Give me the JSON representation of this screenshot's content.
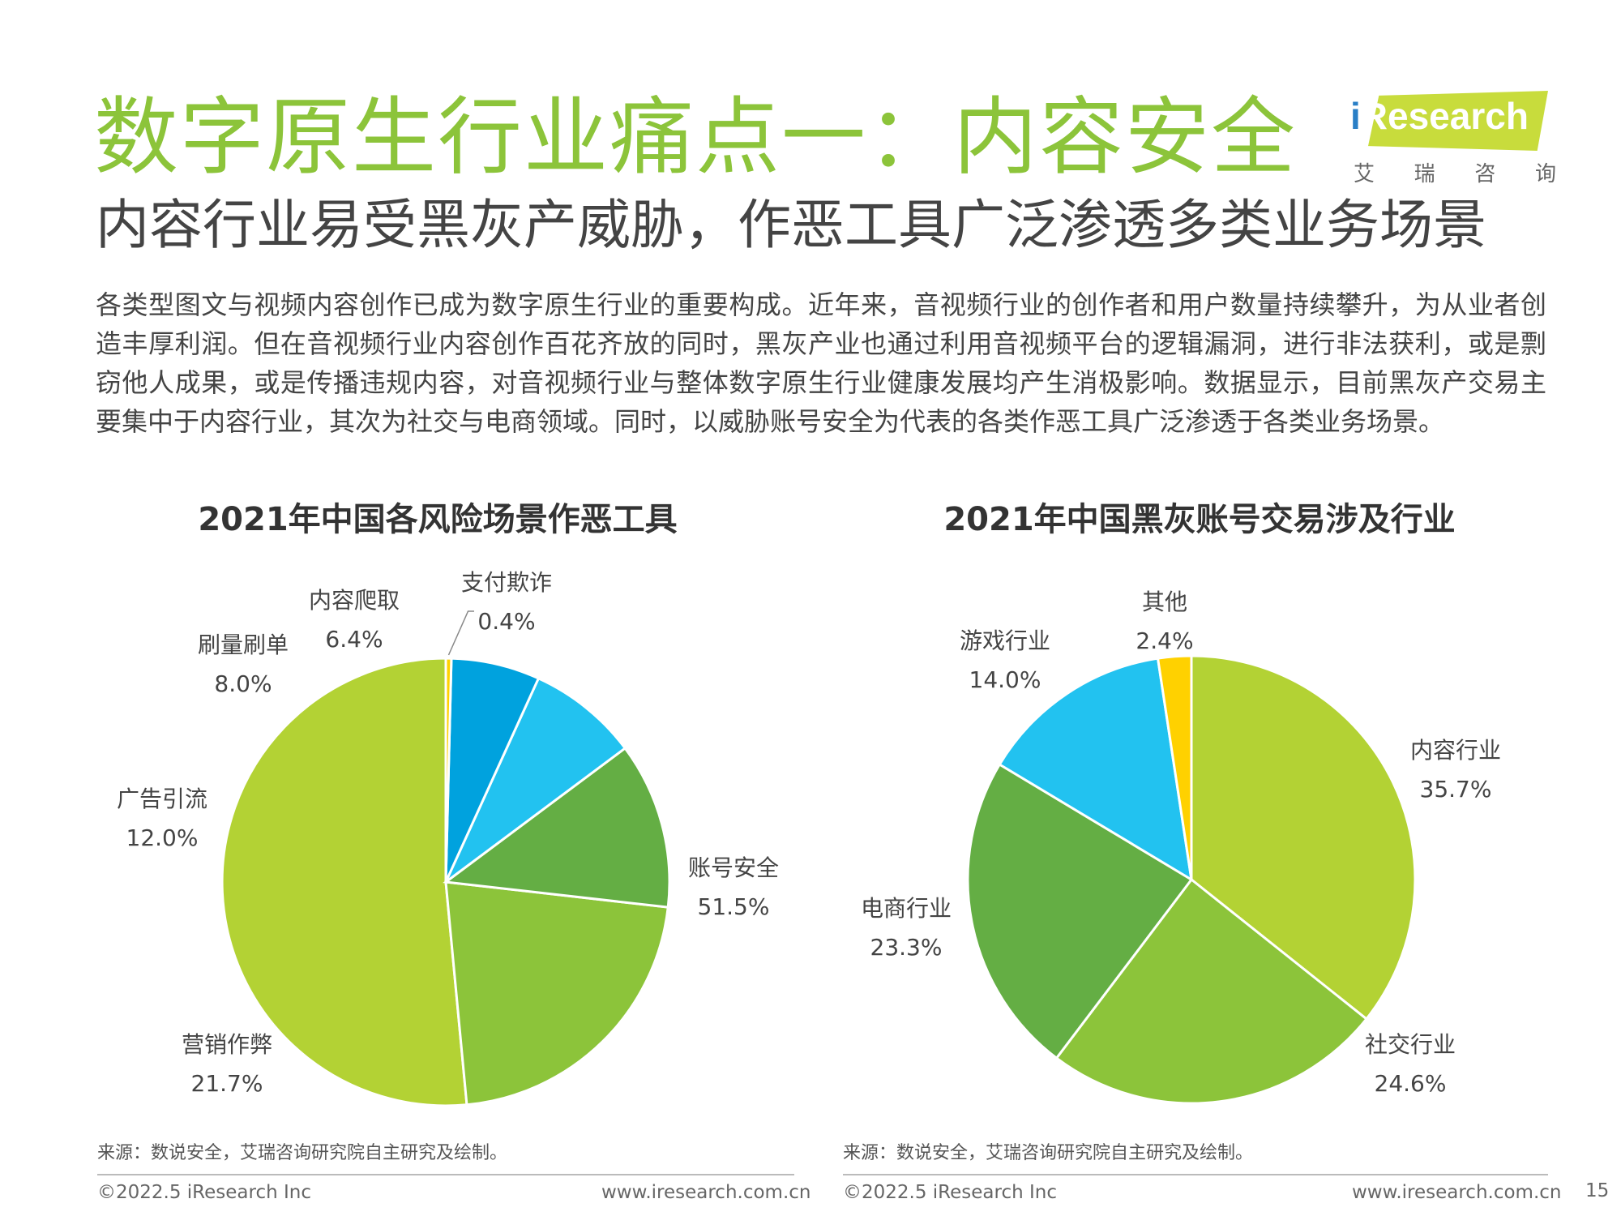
{
  "header": {
    "title": "数字原生行业痛点一：内容安全",
    "subtitle": "内容行业易受黑灰产威胁，作恶工具广泛渗透多类业务场景"
  },
  "logo": {
    "text_i": "i",
    "text_rest": "Research",
    "sub": [
      "艾",
      "瑞",
      "咨",
      "询"
    ]
  },
  "body": {
    "paragraph": "各类型图文与视频内容创作已成为数字原生行业的重要构成。近年来，音视频行业的创作者和用户数量持续攀升，为从业者创造丰厚利润。但在音视频行业内容创作百花齐放的同时，黑灰产业也通过利用音视频平台的逻辑漏洞，进行非法获利，或是剽窃他人成果，或是传播违规内容，对音视频行业与整体数字原生行业健康发展均产生消极影响。数据显示，目前黑灰产交易主要集中于内容行业，其次为社交与电商领域。同时，以威胁账号安全为代表的各类作恶工具广泛渗透于各类业务场景。"
  },
  "chart_data": [
    {
      "type": "pie",
      "title": "2021年中国各风险场景作恶工具",
      "slices": [
        {
          "label": "账号安全",
          "value": 51.5,
          "value_label": "51.5%",
          "color": "#b3d234"
        },
        {
          "label": "营销作弊",
          "value": 21.7,
          "value_label": "21.7%",
          "color": "#8cc43a"
        },
        {
          "label": "广告引流",
          "value": 12.0,
          "value_label": "12.0%",
          "color": "#64ae44"
        },
        {
          "label": "刷量刷单",
          "value": 8.0,
          "value_label": "8.0%",
          "color": "#22c2f0"
        },
        {
          "label": "内容爬取",
          "value": 6.4,
          "value_label": "6.4%",
          "color": "#00a2de"
        },
        {
          "label": "支付欺诈",
          "value": 0.4,
          "value_label": "0.4%",
          "color": "#ffd100"
        }
      ]
    },
    {
      "type": "pie",
      "title": "2021年中国黑灰账号交易涉及行业",
      "slices": [
        {
          "label": "内容行业",
          "value": 35.7,
          "value_label": "35.7%",
          "color": "#b3d234"
        },
        {
          "label": "社交行业",
          "value": 24.6,
          "value_label": "24.6%",
          "color": "#8cc43a"
        },
        {
          "label": "电商行业",
          "value": 23.3,
          "value_label": "23.3%",
          "color": "#64ae44"
        },
        {
          "label": "游戏行业",
          "value": 14.0,
          "value_label": "14.0%",
          "color": "#22c2f0"
        },
        {
          "label": "其他",
          "value": 2.4,
          "value_label": "2.4%",
          "color": "#ffd100"
        }
      ]
    }
  ],
  "sources": [
    "来源：数说安全，艾瑞咨询研究院自主研究及绘制。",
    "来源：数说安全，艾瑞咨询研究院自主研究及绘制。"
  ],
  "footer": {
    "copyright": "©2022.5 iResearch Inc",
    "url": "www.iresearch.com.cn",
    "page_number": "15"
  }
}
